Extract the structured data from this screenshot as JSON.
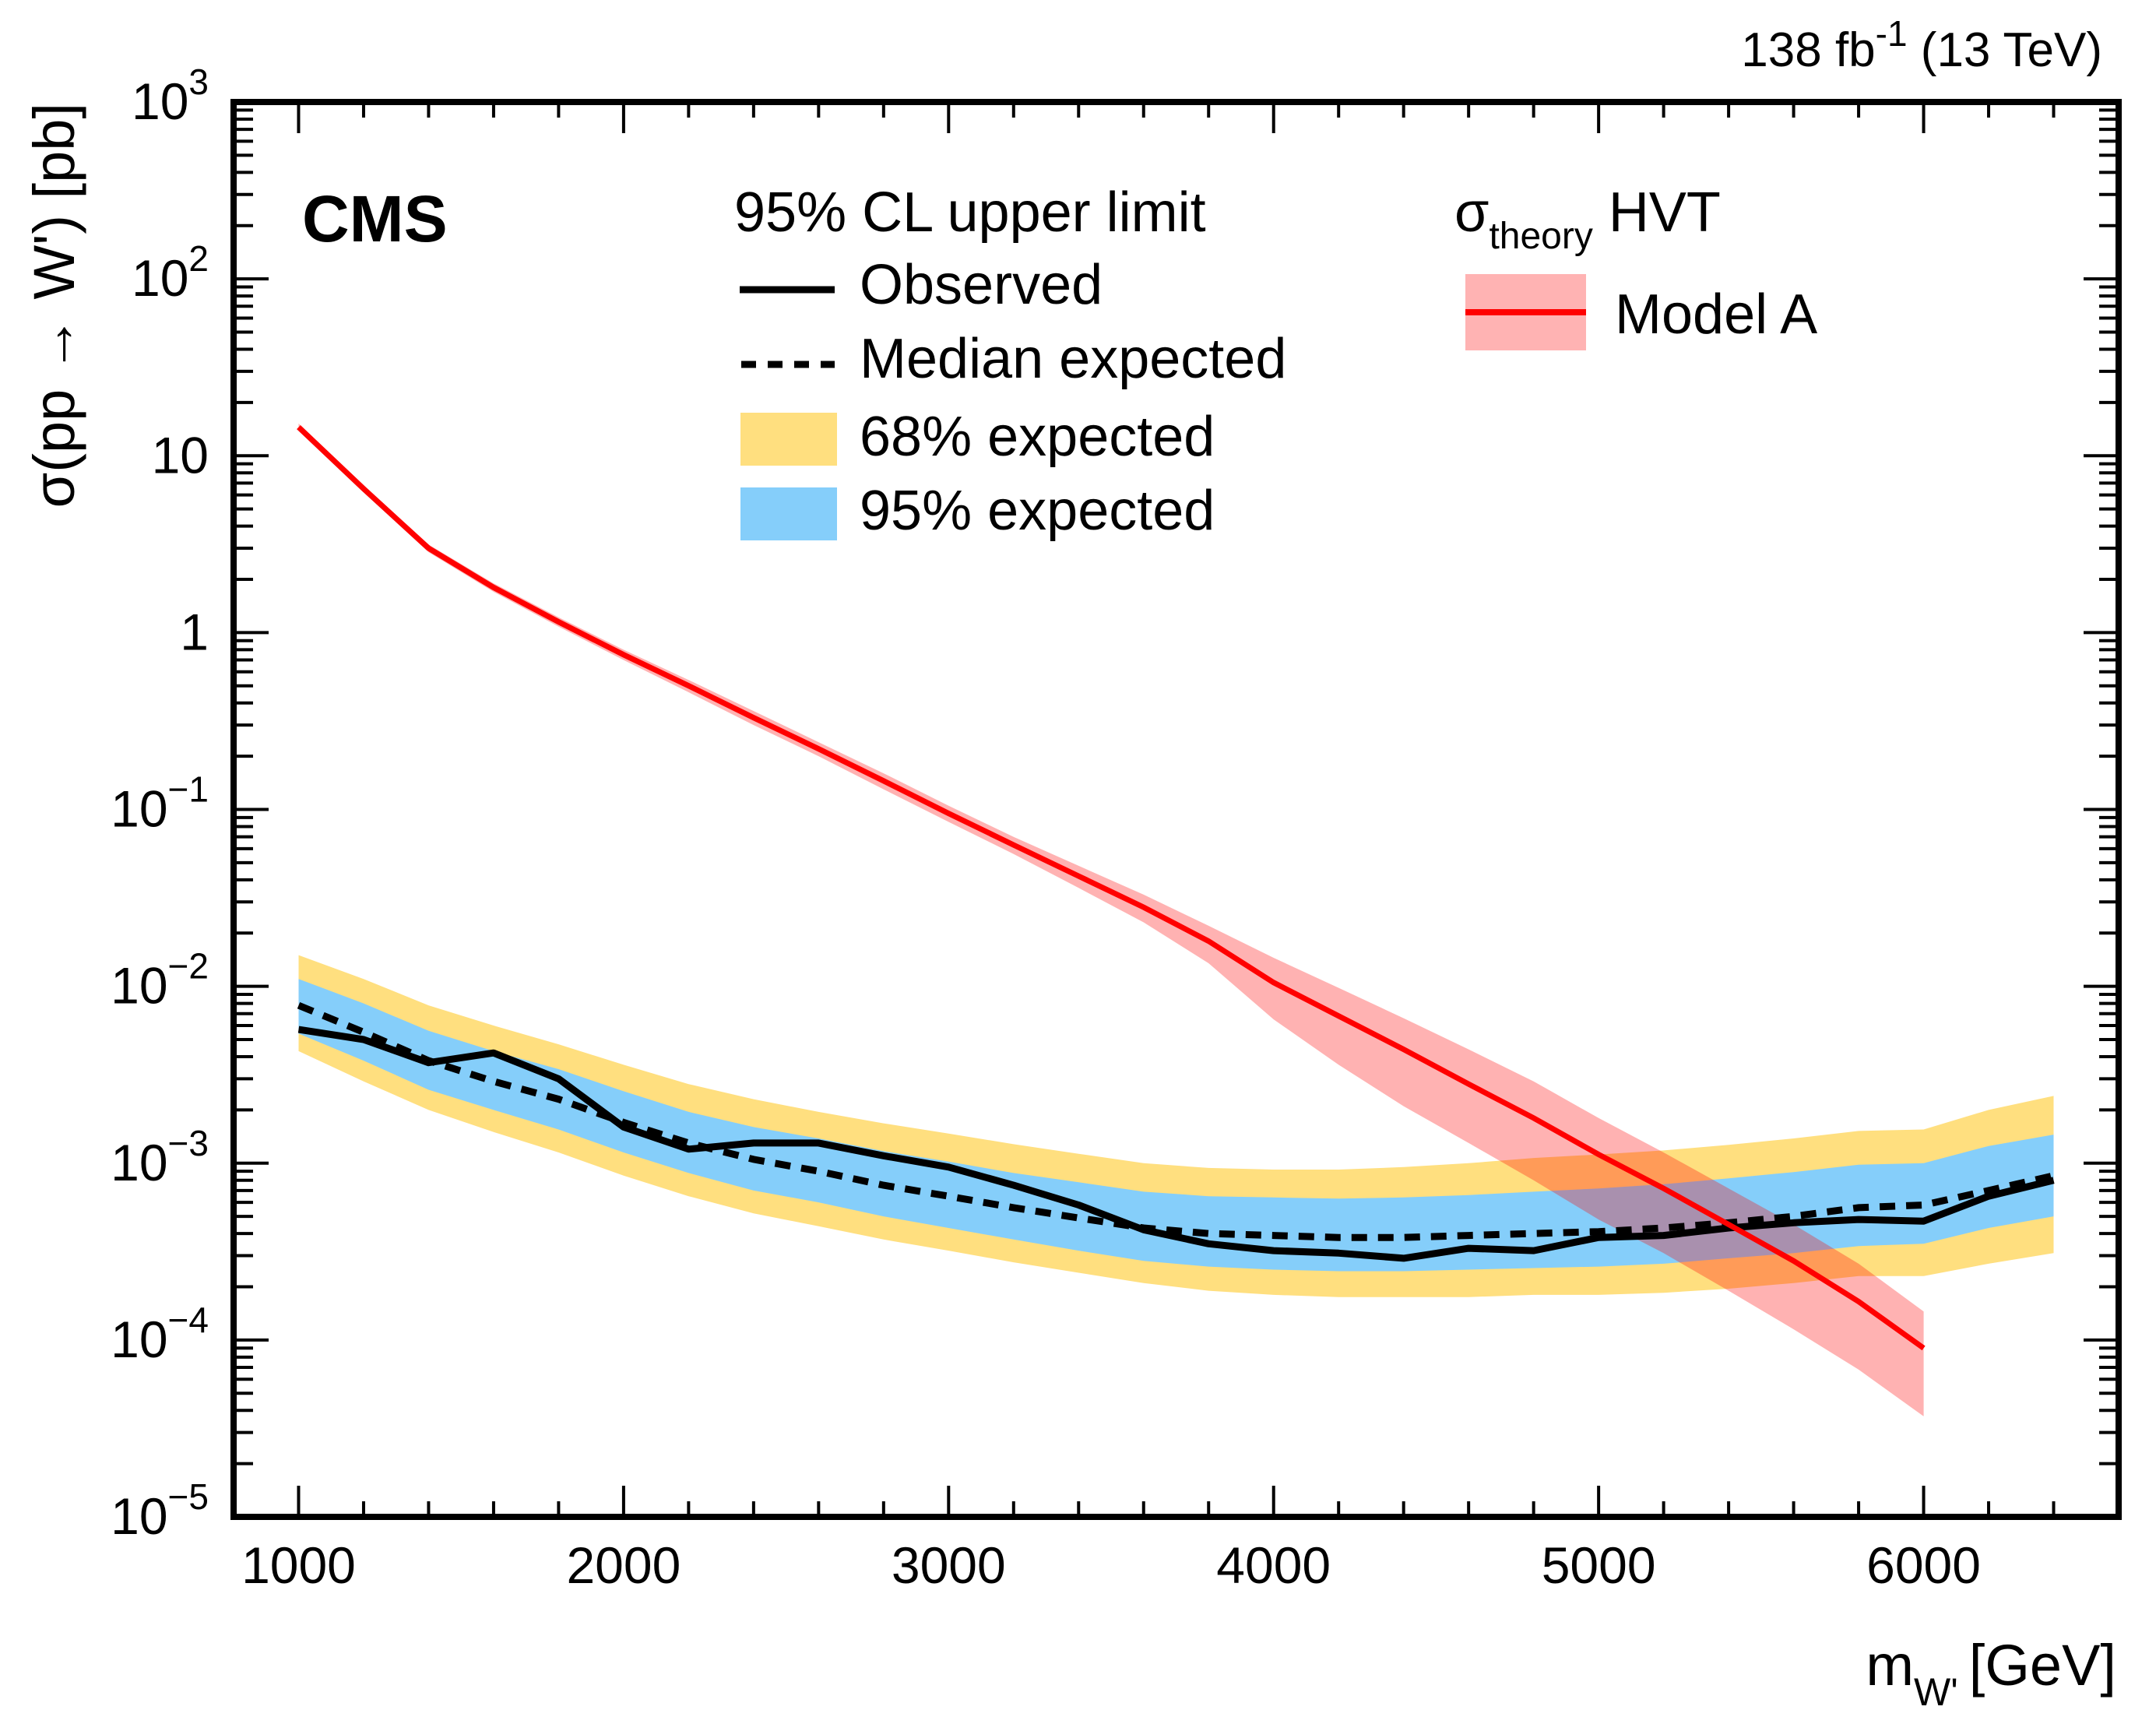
{
  "chart_data": {
    "type": "line",
    "title": "",
    "experiment_label": "CMS",
    "lumi_label": {
      "value": "138",
      "unit": "fb",
      "unit_sup": "-1",
      "energy": "(13 TeV)"
    },
    "xlabel": {
      "main": "m",
      "sub": "W'",
      "unit": "[GeV]"
    },
    "ylabel": "σ(pp → W') [pb]",
    "xlim": [
      800,
      6600
    ],
    "ylim": [
      1e-05,
      1000
    ],
    "yscale": "log",
    "x_ticks": [
      1000,
      2000,
      3000,
      4000,
      5000,
      6000
    ],
    "x_tick_labels": [
      "1000",
      "2000",
      "3000",
      "4000",
      "5000",
      "6000"
    ],
    "y_ticks": [
      {
        "value": 1000,
        "base": "10",
        "exp": "3"
      },
      {
        "value": 100,
        "base": "10",
        "exp": "2"
      },
      {
        "value": 10,
        "base": "10",
        "exp": ""
      },
      {
        "value": 1,
        "base": "1",
        "exp": ""
      },
      {
        "value": 0.1,
        "base": "10",
        "exp": "−1"
      },
      {
        "value": 0.01,
        "base": "10",
        "exp": "−2"
      },
      {
        "value": 0.001,
        "base": "10",
        "exp": "−3"
      },
      {
        "value": 0.0001,
        "base": "10",
        "exp": "−4"
      },
      {
        "value": 1e-05,
        "base": "10",
        "exp": "−5"
      }
    ],
    "legend": {
      "header": "95% CL upper limit",
      "entries": [
        {
          "label": "Observed",
          "style": "solid-line",
          "color": "#000000"
        },
        {
          "label": "Median expected",
          "style": "dashed-line",
          "color": "#000000"
        },
        {
          "label": "68% expected",
          "style": "fill",
          "color": "#FFDF7F"
        },
        {
          "label": "95% expected",
          "style": "fill",
          "color": "#85CEFA"
        }
      ],
      "placement": "top-center"
    },
    "theory_legend": {
      "header_main": "σ",
      "header_sub": "theory",
      "header_rest": " HVT",
      "entries": [
        {
          "label": "Model A",
          "line_color": "#FF0000",
          "band_color": "#FFB3B3"
        }
      ],
      "placement": "top-right"
    },
    "x": [
      1000,
      1200,
      1400,
      1600,
      1800,
      2000,
      2200,
      2400,
      2600,
      2800,
      3000,
      3200,
      3400,
      3600,
      3800,
      4000,
      4200,
      4400,
      4600,
      4800,
      5000,
      5200,
      5400,
      5600,
      5800,
      6000,
      6200,
      6400
    ],
    "series": [
      {
        "name": "Observed",
        "color": "#000000",
        "values": [
          0.0057,
          0.005,
          0.0037,
          0.0042,
          0.003,
          0.0016,
          0.0012,
          0.0013,
          0.0013,
          0.0011,
          0.00095,
          0.00075,
          0.00058,
          0.00042,
          0.00035,
          0.00032,
          0.00031,
          0.00029,
          0.00033,
          0.00032,
          0.00038,
          0.00039,
          0.00043,
          0.00046,
          0.00048,
          0.00047,
          0.00065,
          0.0008
        ]
      },
      {
        "name": "Median expected",
        "color": "#000000",
        "values": [
          0.0078,
          0.0055,
          0.0038,
          0.0029,
          0.0023,
          0.0017,
          0.0013,
          0.00105,
          0.0009,
          0.00075,
          0.00065,
          0.00056,
          0.00049,
          0.00043,
          0.0004,
          0.00039,
          0.00038,
          0.00038,
          0.00039,
          0.0004,
          0.00041,
          0.00043,
          0.00046,
          0.0005,
          0.00056,
          0.00058,
          0.0007,
          0.00085
        ]
      },
      {
        "name": "68% expected lower",
        "values": [
          0.0054,
          0.0038,
          0.0026,
          0.002,
          0.00155,
          0.00115,
          0.00088,
          0.0007,
          0.0006,
          0.0005,
          0.00043,
          0.00037,
          0.00032,
          0.00028,
          0.00026,
          0.00025,
          0.000245,
          0.000245,
          0.00025,
          0.000255,
          0.00026,
          0.00027,
          0.00029,
          0.00031,
          0.00034,
          0.00035,
          0.00043,
          0.0005
        ]
      },
      {
        "name": "68% expected upper",
        "values": [
          0.011,
          0.008,
          0.0056,
          0.0043,
          0.0034,
          0.00255,
          0.00195,
          0.0016,
          0.00138,
          0.00117,
          0.00102,
          0.00088,
          0.00078,
          0.00069,
          0.00065,
          0.00064,
          0.00063,
          0.00064,
          0.00066,
          0.00069,
          0.00072,
          0.00076,
          0.00082,
          0.00089,
          0.00098,
          0.001,
          0.00125,
          0.00145
        ]
      },
      {
        "name": "95% expected lower",
        "values": [
          0.0043,
          0.0029,
          0.002,
          0.0015,
          0.00115,
          0.00085,
          0.00065,
          0.00052,
          0.00044,
          0.00037,
          0.00032,
          0.000275,
          0.00024,
          0.00021,
          0.00019,
          0.00018,
          0.000175,
          0.000175,
          0.000175,
          0.00018,
          0.00018,
          0.000185,
          0.000195,
          0.00021,
          0.00023,
          0.00023,
          0.00027,
          0.00031
        ]
      },
      {
        "name": "95% expected upper",
        "values": [
          0.015,
          0.011,
          0.0078,
          0.006,
          0.0047,
          0.0036,
          0.0028,
          0.0023,
          0.00195,
          0.00168,
          0.00147,
          0.00128,
          0.00113,
          0.001,
          0.00094,
          0.00092,
          0.00092,
          0.00095,
          0.001,
          0.00107,
          0.00112,
          0.00118,
          0.00127,
          0.00138,
          0.00152,
          0.00155,
          0.002,
          0.0024
        ]
      },
      {
        "name": "HVT Model A",
        "color": "#FF0000",
        "x": [
          1000,
          1200,
          1400,
          1600,
          1800,
          2000,
          2200,
          2400,
          2600,
          2800,
          3000,
          3200,
          3400,
          3600,
          3800,
          4000,
          4200,
          4400,
          4600,
          4800,
          5000,
          5200,
          5400,
          5600,
          5800,
          6000
        ],
        "values": [
          14.5,
          6.5,
          3.0,
          1.8,
          1.15,
          0.75,
          0.5,
          0.33,
          0.22,
          0.145,
          0.095,
          0.063,
          0.042,
          0.028,
          0.018,
          0.0105,
          0.0068,
          0.0044,
          0.0028,
          0.0018,
          0.00112,
          0.00072,
          0.00045,
          0.00028,
          0.000165,
          9e-05
        ],
        "band_lower": [
          13.8,
          6.2,
          2.85,
          1.7,
          1.08,
          0.7,
          0.46,
          0.3,
          0.2,
          0.13,
          0.085,
          0.056,
          0.036,
          0.023,
          0.0135,
          0.0065,
          0.0036,
          0.0021,
          0.0013,
          0.0008,
          0.00048,
          0.00031,
          0.00019,
          0.000115,
          6.8e-05,
          3.7e-05
        ],
        "band_upper": [
          15.2,
          6.8,
          3.15,
          1.9,
          1.22,
          0.8,
          0.54,
          0.36,
          0.24,
          0.16,
          0.105,
          0.07,
          0.048,
          0.033,
          0.022,
          0.0145,
          0.0098,
          0.0066,
          0.0044,
          0.0029,
          0.0018,
          0.00115,
          0.00072,
          0.00045,
          0.00027,
          0.000145
        ]
      }
    ],
    "grid": false
  }
}
